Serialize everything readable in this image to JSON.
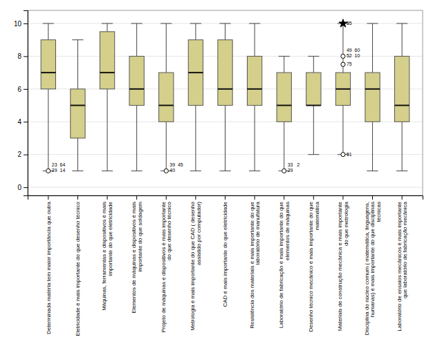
{
  "chart_data": {
    "type": "box",
    "color": "#d4cf8a",
    "ylim": [
      -0.5,
      10.8
    ],
    "yticks": [
      0,
      2,
      4,
      6,
      8,
      10
    ],
    "grid": true,
    "categories": [
      "Determinada matéria tem maior importância que outra",
      "Eletricidade é mais importante do que desenho técnico",
      "Máquinas, ferramentas e dispositivos é mais importante do que eletricidade",
      "Elementos de máquinas e dispositivos é mais importante do que soldagem",
      "Projeto de máquinas e dispositivos é mais importante do que desenho técnico",
      "Metrologia é mais importante do que CAD ( desenho assistido por computador)",
      "CAD é mais importante do que eletricidade",
      "Resistência dos materiais é mais importante do que laboratório de manufatura",
      "Laboratório de fabricação é mais importante do que elementos de máquinas",
      "Desenho técnico mecânico é mais importante do que matemática",
      "Materiais de construção mecânica e mais importante do que metrologia",
      "Disciplina do núcleo comum ( matemática, linguagens, humanas) é mais importante do que disciplinas técnicas",
      "Laboratório de ensaios mecânicos é mais importante que laboratório de fabricação mecânica"
    ],
    "boxes": [
      {
        "q1": 6.0,
        "median": 7.0,
        "q3": 9.0,
        "wl": 1.0,
        "wh": 10.0,
        "outliers": [
          {
            "y": 1.0,
            "marker": "circle",
            "labels": [
              "23  64",
              "29  14"
            ]
          }
        ]
      },
      {
        "q1": 3.0,
        "median": 5.0,
        "q3": 6.0,
        "wl": 1.0,
        "wh": 9.0,
        "outliers": []
      },
      {
        "q1": 6.0,
        "median": 7.0,
        "q3": 9.5,
        "wl": 1.0,
        "wh": 10.0,
        "outliers": []
      },
      {
        "q1": 5.0,
        "median": 6.0,
        "q3": 8.0,
        "wl": 1.0,
        "wh": 10.0,
        "outliers": []
      },
      {
        "q1": 4.0,
        "median": 5.0,
        "q3": 7.0,
        "wl": 1.0,
        "wh": 10.0,
        "outliers": [
          {
            "y": 1.0,
            "marker": "circle",
            "labels": [
              "39  45",
              "40"
            ]
          }
        ]
      },
      {
        "q1": 5.0,
        "median": 7.0,
        "q3": 9.0,
        "wl": 1.0,
        "wh": 10.0,
        "outliers": []
      },
      {
        "q1": 5.0,
        "median": 6.0,
        "q3": 9.0,
        "wl": 1.0,
        "wh": 10.0,
        "outliers": []
      },
      {
        "q1": 5.0,
        "median": 6.0,
        "q3": 8.0,
        "wl": 1.0,
        "wh": 10.0,
        "outliers": []
      },
      {
        "q1": 4.0,
        "median": 5.0,
        "q3": 7.0,
        "wl": 1.0,
        "wh": 8.0,
        "outliers": [
          {
            "y": 1.0,
            "marker": "circle",
            "labels": [
              "33   2",
              "29"
            ]
          }
        ]
      },
      {
        "q1": 5.0,
        "median": 5.0,
        "q3": 7.0,
        "wl": 2.0,
        "wh": 8.0,
        "outliers": []
      },
      {
        "q1": 5.0,
        "median": 6.0,
        "q3": 7.0,
        "wl": 2.0,
        "wh": 10.0,
        "outliers": [
          {
            "y": 2.0,
            "marker": "circle",
            "labels": [
              "51"
            ]
          },
          {
            "y": 7.5,
            "marker": "circle",
            "labels": [
              "75"
            ]
          },
          {
            "y": 8.0,
            "marker": "circle",
            "labels": [
              "49  60",
              "52  10"
            ]
          },
          {
            "y": 10.0,
            "marker": "star",
            "labels": [
              "55"
            ]
          }
        ]
      },
      {
        "q1": 4.0,
        "median": 6.0,
        "q3": 7.0,
        "wl": 1.0,
        "wh": 10.0,
        "outliers": []
      },
      {
        "q1": 4.0,
        "median": 5.0,
        "q3": 8.0,
        "wl": 1.0,
        "wh": 10.0,
        "outliers": []
      }
    ]
  }
}
